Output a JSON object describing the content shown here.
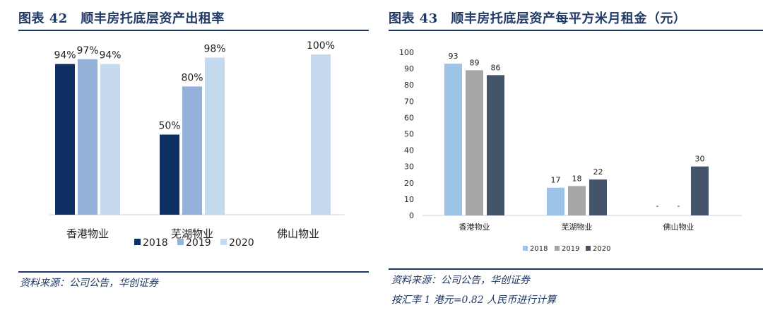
{
  "left": {
    "title": "图表 42　顺丰房托底层资产出租率",
    "source": "资料来源：公司公告，华创证券",
    "colors": [
      "#0d2f63",
      "#93b1d9",
      "#c6daef"
    ],
    "chart_data": {
      "type": "bar",
      "title": "",
      "categories": [
        "香港物业",
        "芜湖物业",
        "佛山物业"
      ],
      "series": [
        {
          "name": "2018",
          "values": [
            94,
            50,
            null
          ],
          "labels": [
            "94%",
            "50%",
            ""
          ]
        },
        {
          "name": "2019",
          "values": [
            97,
            80,
            null
          ],
          "labels": [
            "97%",
            "80%",
            ""
          ]
        },
        {
          "name": "2020",
          "values": [
            94,
            98,
            100
          ],
          "labels": [
            "94%",
            "98%",
            "100%"
          ]
        }
      ],
      "ylim": [
        0,
        100
      ],
      "y_axis_visible": false,
      "grid": false,
      "legend_position": "bottom"
    }
  },
  "right": {
    "title": "图表 43　顺丰房托底层资产每平方米月租金（元）",
    "source": "资料来源：公司公告，华创证券",
    "note": "按汇率 1 港元=0.82 人民币进行计算",
    "colors": [
      "#9dc3e6",
      "#a6a6a6",
      "#44546a"
    ],
    "chart_data": {
      "type": "bar",
      "title": "",
      "categories": [
        "香港物业",
        "芜湖物业",
        "佛山物业"
      ],
      "series": [
        {
          "name": "2018",
          "values": [
            93,
            17,
            null
          ],
          "labels": [
            "93",
            "17",
            "-"
          ]
        },
        {
          "name": "2019",
          "values": [
            89,
            18,
            null
          ],
          "labels": [
            "89",
            "18",
            "-"
          ]
        },
        {
          "name": "2020",
          "values": [
            86,
            22,
            30
          ],
          "labels": [
            "86",
            "22",
            "30"
          ]
        }
      ],
      "ylim": [
        0,
        100
      ],
      "yticks": [
        0,
        10,
        20,
        30,
        40,
        50,
        60,
        70,
        80,
        90,
        100
      ],
      "grid": false,
      "legend_position": "bottom"
    }
  }
}
